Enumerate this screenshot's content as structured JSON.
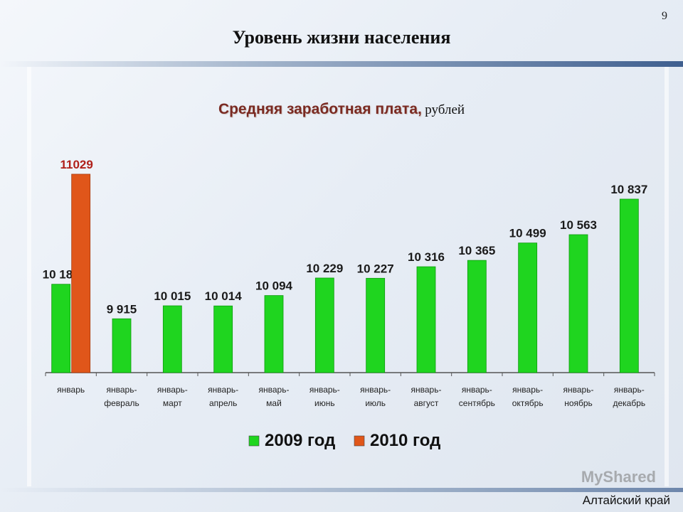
{
  "slide": {
    "number": "9",
    "title": "Уровень жизни населения",
    "footer": "Алтайский край",
    "watermark": "MyShared"
  },
  "colors": {
    "series_2009": "#1fd51f",
    "series_2010": "#e0561a",
    "label_2009": "#1a1a1a",
    "label_2010": "#b0201a"
  },
  "chart_data": {
    "type": "bar",
    "title": "Средняя заработная плата,",
    "unit": "рублей",
    "categories": [
      [
        "январь"
      ],
      [
        "январь-",
        "февраль"
      ],
      [
        "январь-",
        "март"
      ],
      [
        "январь-",
        "апрель"
      ],
      [
        "январь-",
        "май"
      ],
      [
        "январь-",
        "июнь"
      ],
      [
        "январь-",
        "июль"
      ],
      [
        "январь-",
        "август"
      ],
      [
        "январь-",
        "сентябрь"
      ],
      [
        "январь-",
        "октябрь"
      ],
      [
        "январь-",
        "ноябрь"
      ],
      [
        "январь-",
        "декабрь"
      ]
    ],
    "series": [
      {
        "name": "2009 год",
        "values": [
          10181,
          9915,
          10015,
          10014,
          10094,
          10229,
          10227,
          10316,
          10365,
          10499,
          10563,
          10837
        ],
        "labels": [
          "10 181",
          "9 915",
          "10 015",
          "10 014",
          "10 094",
          "10 229",
          "10 227",
          "10 316",
          "10 365",
          "10 499",
          "10 563",
          "10 837"
        ]
      },
      {
        "name": "2010 год",
        "values": [
          11029,
          null,
          null,
          null,
          null,
          null,
          null,
          null,
          null,
          null,
          null,
          null
        ],
        "labels": [
          "11029",
          "",
          "",
          "",
          "",
          "",
          "",
          "",
          "",
          "",
          "",
          ""
        ]
      }
    ],
    "ylim": [
      9500,
      11100
    ],
    "legend": "bottom-center",
    "grid": false
  }
}
